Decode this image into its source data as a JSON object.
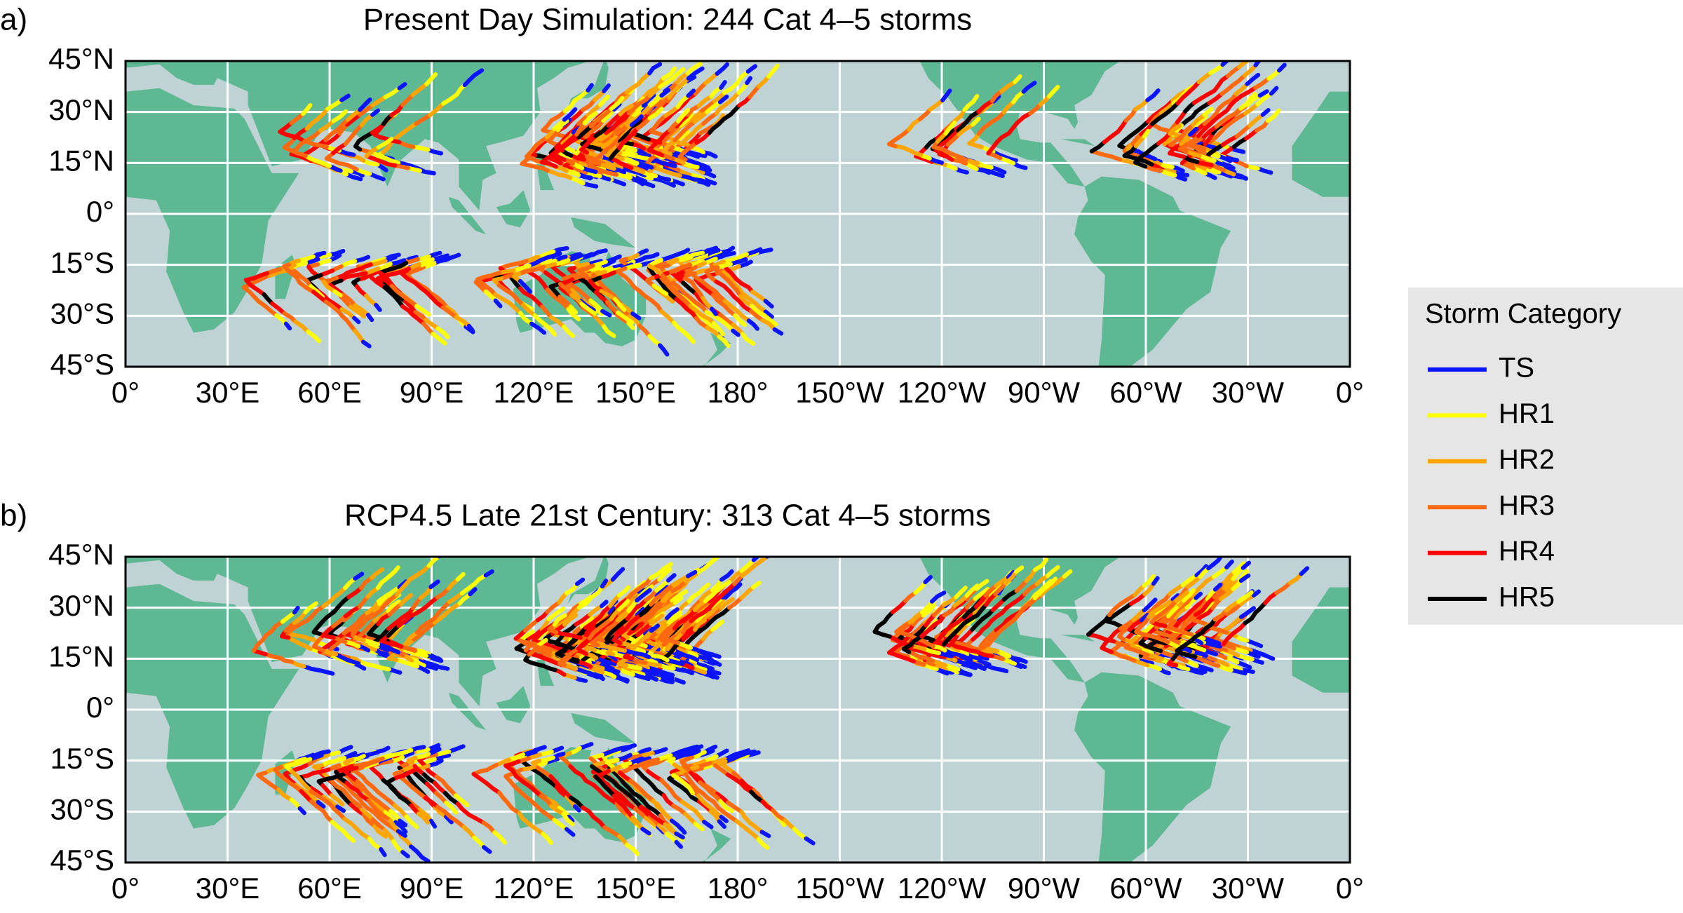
{
  "panels": [
    {
      "label": "a)",
      "title": "Present Day Simulation: 244 Cat 4–5 storms"
    },
    {
      "label": "b)",
      "title": "RCP4.5 Late 21st Century: 313 Cat 4–5 storms"
    }
  ],
  "lon_ticks": [
    {
      "value": 0,
      "label": "0°"
    },
    {
      "value": 30,
      "label": "30°E"
    },
    {
      "value": 60,
      "label": "60°E"
    },
    {
      "value": 90,
      "label": "90°E"
    },
    {
      "value": 120,
      "label": "120°E"
    },
    {
      "value": 150,
      "label": "150°E"
    },
    {
      "value": 180,
      "label": "180°"
    },
    {
      "value": 210,
      "label": "150°W"
    },
    {
      "value": 240,
      "label": "120°W"
    },
    {
      "value": 270,
      "label": "90°W"
    },
    {
      "value": 300,
      "label": "60°W"
    },
    {
      "value": 330,
      "label": "30°W"
    },
    {
      "value": 360,
      "label": "0°"
    }
  ],
  "lat_ticks": [
    {
      "value": 45,
      "label": "45°N"
    },
    {
      "value": 30,
      "label": "30°N"
    },
    {
      "value": 15,
      "label": "15°N"
    },
    {
      "value": 0,
      "label": "0°"
    },
    {
      "value": -15,
      "label": "15°S"
    },
    {
      "value": -30,
      "label": "30°S"
    },
    {
      "value": -45,
      "label": "45°S"
    }
  ],
  "legend": {
    "title": "Storm Category",
    "entries": [
      {
        "name": "TS",
        "color": "#0a14ff"
      },
      {
        "name": "HR1",
        "color": "#ffff00"
      },
      {
        "name": "HR2",
        "color": "#ffa500"
      },
      {
        "name": "HR3",
        "color": "#ff6a10"
      },
      {
        "name": "HR4",
        "color": "#ff0000"
      },
      {
        "name": "HR5",
        "color": "#000000"
      }
    ]
  }
}
